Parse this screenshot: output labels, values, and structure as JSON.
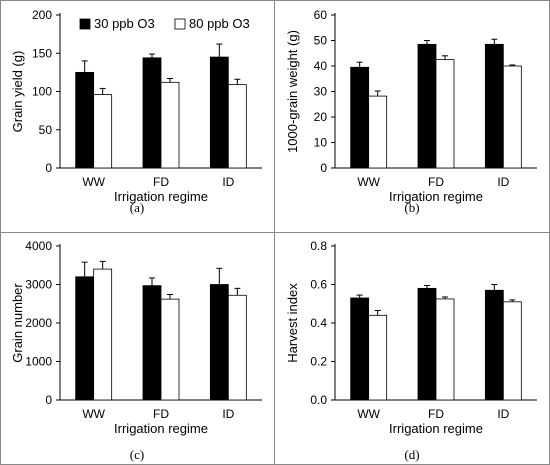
{
  "chart_data": [
    {
      "type": "bar",
      "panel": "a",
      "caption": "(a)",
      "ylabel": "Grain yield (g)",
      "xlabel": "Irrigation regime",
      "categories": [
        "WW",
        "FD",
        "ID"
      ],
      "ylim": [
        0,
        200
      ],
      "yticks": [
        0,
        50,
        100,
        150,
        200
      ],
      "legend": "top",
      "series": [
        {
          "name": "30 ppb O3",
          "values": [
            125,
            144,
            145
          ],
          "errors": [
            15,
            5,
            17
          ],
          "color": "#000000"
        },
        {
          "name": "80 ppb O3",
          "values": [
            96,
            112,
            109
          ],
          "errors": [
            8,
            5,
            7
          ],
          "color": "#ffffff"
        }
      ]
    },
    {
      "type": "bar",
      "panel": "b",
      "caption": "(b)",
      "ylabel": "1000-grain weight (g)",
      "xlabel": "Irrigation regime",
      "categories": [
        "WW",
        "FD",
        "ID"
      ],
      "ylim": [
        0,
        60
      ],
      "yticks": [
        0,
        10,
        20,
        30,
        40,
        50,
        60
      ],
      "series": [
        {
          "name": "30 ppb O3",
          "values": [
            39.5,
            48.5,
            48.5
          ],
          "errors": [
            2,
            1.5,
            2
          ],
          "color": "#000000"
        },
        {
          "name": "80 ppb O3",
          "values": [
            28.2,
            42.5,
            40
          ],
          "errors": [
            2,
            1.5,
            0.4
          ],
          "color": "#ffffff"
        }
      ]
    },
    {
      "type": "bar",
      "panel": "c",
      "caption": "(c)",
      "ylabel": "Grain number",
      "xlabel": "Irrigation regime",
      "categories": [
        "WW",
        "FD",
        "ID"
      ],
      "ylim": [
        0,
        4000
      ],
      "yticks": [
        0,
        1000,
        2000,
        3000,
        4000
      ],
      "series": [
        {
          "name": "30 ppb O3",
          "values": [
            3200,
            2970,
            3000
          ],
          "errors": [
            380,
            200,
            420
          ],
          "color": "#000000"
        },
        {
          "name": "80 ppb O3",
          "values": [
            3400,
            2620,
            2720
          ],
          "errors": [
            200,
            120,
            180
          ],
          "color": "#ffffff"
        }
      ]
    },
    {
      "type": "bar",
      "panel": "d",
      "caption": "(d)",
      "ylabel": "Harvest index",
      "xlabel": "Irrigation regime",
      "categories": [
        "WW",
        "FD",
        "ID"
      ],
      "ylim": [
        0,
        0.8
      ],
      "yticks": [
        "0.0",
        "0.2",
        "0.4",
        "0.6",
        "0.8"
      ],
      "series": [
        {
          "name": "30 ppb O3",
          "values": [
            0.53,
            0.58,
            0.57
          ],
          "errors": [
            0.015,
            0.015,
            0.03
          ],
          "color": "#000000"
        },
        {
          "name": "80 ppb O3",
          "values": [
            0.44,
            0.525,
            0.51
          ],
          "errors": [
            0.025,
            0.01,
            0.01
          ],
          "color": "#ffffff"
        }
      ]
    }
  ]
}
